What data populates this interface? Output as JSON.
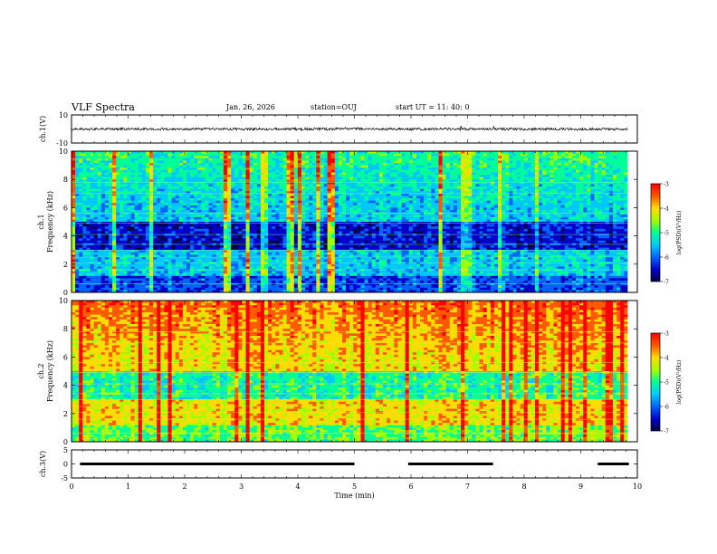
{
  "header": {
    "title": "VLF Spectra",
    "date": "Jan. 26, 2026",
    "station": "station=OUJ",
    "start": "start  UT  =   11: 40: 0"
  },
  "colors": {
    "spectrogram_scale": [
      "#000046",
      "#0000c8",
      "#0064ff",
      "#00c8ff",
      "#00ff96",
      "#a0ff00",
      "#ffdc00",
      "#ff5a00",
      "#ff0000"
    ]
  },
  "chart_data": [
    {
      "name": "ch1-waveform",
      "type": "line",
      "ylabel": "ch.1(V)",
      "ylim": [
        -10,
        10
      ],
      "yticks": [
        "10",
        "-10"
      ],
      "baseline": 0,
      "note_values": "noise trace around 0 V with small spikes"
    },
    {
      "name": "ch1-spectrogram",
      "type": "heatmap",
      "ylabel_top": "ch.1",
      "ylabel": "Frequency  (kHz)",
      "ylim": [
        0,
        10
      ],
      "yticks": [
        "0",
        "2",
        "4",
        "6",
        "8",
        "10"
      ],
      "colorbar_label": "log(PSD)(V²/Hz)",
      "colorbar_range": [
        -7,
        -3
      ],
      "colorbar_ticks": [
        "-3",
        "-4",
        "-5",
        "-6",
        "-7"
      ],
      "mean_level": -5.6
    },
    {
      "name": "ch2-spectrogram",
      "type": "heatmap",
      "ylabel_top": "ch.2",
      "ylabel": "Frequency  (kHz)",
      "ylim": [
        0,
        10
      ],
      "yticks": [
        "0",
        "2",
        "4",
        "6",
        "8",
        "10"
      ],
      "colorbar_label": "log(PSD)(V²/Hz)",
      "colorbar_range": [
        -7,
        -3
      ],
      "colorbar_ticks": [
        "-3",
        "-4",
        "-5",
        "-6",
        "-7"
      ],
      "mean_level": -4.4
    },
    {
      "name": "ch3-signal",
      "type": "line",
      "ylabel": "ch.3(V)",
      "ylim": [
        -5,
        5
      ],
      "yticks": [
        "5",
        "0",
        "-5"
      ],
      "segments_min": [
        [
          0.15,
          5.0
        ],
        [
          5.95,
          7.45
        ],
        [
          9.3,
          9.85
        ]
      ],
      "segment_level": 0
    },
    {
      "name": "time-axis",
      "type": "line",
      "xlabel": "Time  (min)",
      "xlim": [
        0,
        10
      ],
      "xticks": [
        "0",
        "1",
        "2",
        "3",
        "4",
        "5",
        "6",
        "7",
        "8",
        "9",
        "10"
      ]
    }
  ]
}
